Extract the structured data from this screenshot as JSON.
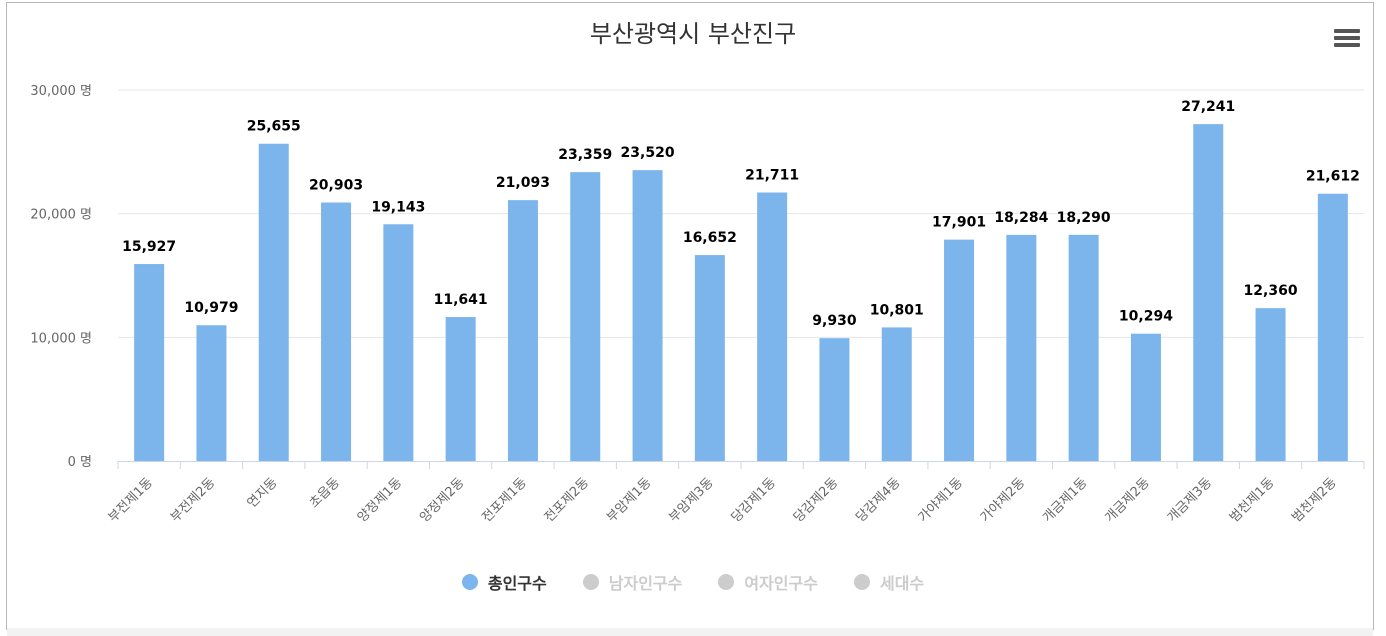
{
  "chart_data": {
    "type": "bar",
    "title": "부산광역시 부산진구",
    "categories": [
      "부전제1동",
      "부전제2동",
      "연지동",
      "초읍동",
      "양정제1동",
      "양정제2동",
      "전포제1동",
      "전포제2동",
      "부암제1동",
      "부암제3동",
      "당감제1동",
      "당감제2동",
      "당감제4동",
      "가야제1동",
      "가야제2동",
      "개금제1동",
      "개금제2동",
      "개금제3동",
      "범천제1동",
      "범천제2동"
    ],
    "series": [
      {
        "name": "총인구수",
        "values": [
          15927,
          10979,
          25655,
          20903,
          19143,
          11641,
          21093,
          23359,
          23520,
          16652,
          21711,
          9930,
          10801,
          17901,
          18284,
          18290,
          10294,
          27241,
          12360,
          21612
        ],
        "visible": true
      }
    ],
    "value_labels": [
      "15,927",
      "10,979",
      "25,655",
      "20,903",
      "19,143",
      "11,641",
      "21,093",
      "23,359",
      "23,520",
      "16,652",
      "21,711",
      "9,930",
      "10,801",
      "17,901",
      "18,284",
      "18,290",
      "10,294",
      "27,241",
      "12,360",
      "21,612"
    ],
    "y_ticks": [
      0,
      10000,
      20000,
      30000
    ],
    "y_tick_labels": [
      "0 명",
      "10,000 명",
      "20,000 명",
      "30,000 명"
    ],
    "ylim": [
      0,
      30000
    ],
    "xlabel": "",
    "ylabel": "",
    "grid": true,
    "legend_position": "bottom-center"
  },
  "legend": {
    "items": [
      {
        "label": "총인구수",
        "active": true
      },
      {
        "label": "남자인구수",
        "active": false
      },
      {
        "label": "여자인구수",
        "active": false
      },
      {
        "label": "세대수",
        "active": false
      }
    ]
  },
  "colors": {
    "bar": "#7cb5ec",
    "active_text": "#333333",
    "inactive": "#cccccc",
    "grid": "#e6e6e6",
    "axis_text": "#666666"
  },
  "menu": {
    "icon": "hamburger-menu-icon"
  }
}
